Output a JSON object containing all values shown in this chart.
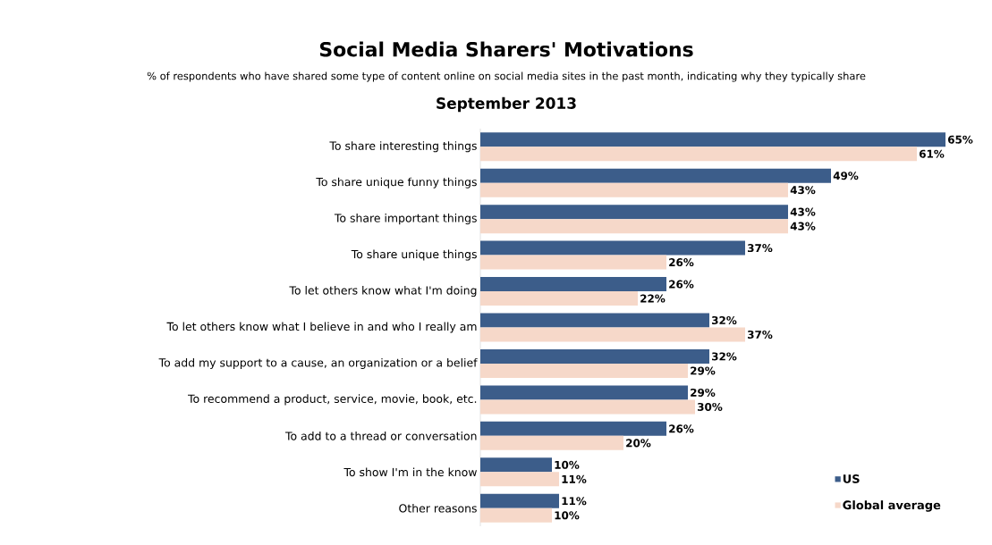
{
  "chart_data": {
    "type": "bar",
    "orientation": "horizontal",
    "title": "Social Media Sharers' Motivations",
    "subtitle": "% of respondents who have shared some type of content online on social media sites in the past month, indicating why they typically share",
    "annotations": [
      "September 2013"
    ],
    "categories": [
      "To share interesting things",
      "To share unique funny things",
      "To share important things",
      "To share unique things",
      "To let others know what I'm doing",
      "To let others know what I believe in and who I really am",
      "To add my support to a cause, an organization or a belief",
      "To recommend a product, service, movie, book, etc.",
      "To add to a thread or conversation",
      "To show I'm in the know",
      "Other reasons"
    ],
    "series": [
      {
        "name": "US",
        "color": "#3c5d8a",
        "values": [
          65,
          49,
          43,
          37,
          26,
          32,
          32,
          29,
          26,
          10,
          11
        ],
        "value_labels": [
          "65%",
          "49%",
          "43%",
          "37%",
          "26%",
          "32%",
          "32%",
          "29%",
          "26%",
          "10%",
          "11%"
        ]
      },
      {
        "name": "Global average",
        "color": "#f6d8c9",
        "values": [
          61,
          43,
          43,
          26,
          22,
          37,
          29,
          30,
          20,
          11,
          10
        ],
        "value_labels": [
          "61%",
          "43%",
          "43%",
          "26%",
          "22%",
          "37%",
          "29%",
          "30%",
          "20%",
          "11%",
          "10%"
        ]
      }
    ],
    "legend": "bottom right"
  }
}
